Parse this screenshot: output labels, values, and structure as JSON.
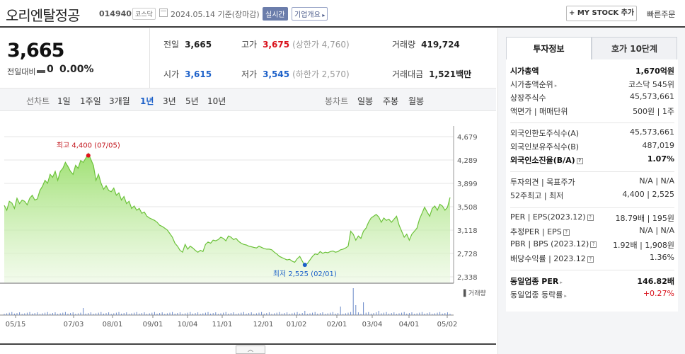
{
  "header": {
    "title": "오리엔탈정공",
    "code": "014940",
    "market": "코스닥",
    "date": "2024.05.14 기준(장마감)",
    "realtime": "실시간",
    "overview": "기업개요",
    "my_stock": "+ MY STOCK 추가",
    "quick_order": "빠른주문"
  },
  "quote": {
    "price": "3,665",
    "change_label": "전일대비",
    "change": "0",
    "change_pct": "0.00%",
    "prev_label": "전일",
    "prev": "3,665",
    "high_label": "고가",
    "high": "3,675",
    "upper_limit": "(상한가 4,760)",
    "volume_label": "거래량",
    "volume": "419,724",
    "open_label": "시가",
    "open": "3,615",
    "low_label": "저가",
    "low": "3,545",
    "lower_limit": "(하한가 2,570)",
    "value_label": "거래대금",
    "value": "1,521",
    "value_unit": "백만"
  },
  "period_bar": {
    "line_chart": "선차트",
    "periods": [
      "1일",
      "1주일",
      "3개월",
      "1년",
      "3년",
      "5년",
      "10년"
    ],
    "active_period": "1년",
    "candle_chart": "봉차트",
    "candles": [
      "일봉",
      "주봉",
      "월봉"
    ]
  },
  "chart_data": {
    "type": "area",
    "title": "",
    "x_ticks": [
      "05/15",
      "07/03",
      "08/01",
      "09/01",
      "10/04",
      "11/01",
      "12/01",
      "01/02",
      "02/01",
      "03/04",
      "04/01",
      "05/02"
    ],
    "y_ticks": [
      "4,679",
      "4,289",
      "3,899",
      "3,508",
      "3,118",
      "2,728",
      "2,338"
    ],
    "ylim": [
      2338,
      4679
    ],
    "series": [
      {
        "values": [
          3530,
          3450,
          3600,
          3570,
          3480,
          3650,
          3560,
          3620,
          3600,
          3540,
          3650,
          3700,
          3620,
          3640,
          3780,
          3850,
          3950,
          3900,
          4050,
          4000,
          4100,
          3950,
          4100,
          4150,
          4250,
          4180,
          4100,
          4050,
          4200,
          4150,
          4280,
          4250,
          4320,
          4400,
          4300,
          4200,
          3950,
          4050,
          3900,
          3800,
          3860,
          3780,
          3760,
          3820,
          3700,
          3740,
          3620,
          3680,
          3560,
          3600,
          3480,
          3520,
          3450,
          3480,
          3400,
          3420,
          3350,
          3320,
          3300,
          3280,
          3250,
          3200,
          3180,
          3150,
          3120,
          3060,
          3000,
          2900,
          2850,
          2780,
          2750,
          2880,
          2800,
          2850,
          2820,
          2780,
          2750,
          2780,
          2760,
          2880,
          2920,
          2900,
          2950,
          2940,
          2960,
          3000,
          2980,
          2940,
          3020,
          3000,
          2960,
          2980,
          2930,
          2900,
          2880,
          2870,
          2850,
          2840,
          2830,
          2820,
          2850,
          2830,
          2810,
          2800,
          2800,
          2790,
          2750,
          2720,
          2680,
          2660,
          2640,
          2620,
          2630,
          2600,
          2580,
          2640,
          2680,
          2600,
          2525,
          2560,
          2620,
          2680,
          2720,
          2710,
          2760,
          2730,
          2750,
          2740,
          2760,
          2770,
          2750,
          2760,
          2790,
          2800,
          2820,
          2850,
          3100,
          3050,
          2950,
          3020,
          2980,
          3100,
          3150,
          3250,
          3320,
          3350,
          3380,
          3340,
          3250,
          3320,
          3280,
          3300,
          3250,
          3300,
          3350,
          3200,
          3100,
          3000,
          3050,
          2950,
          3050,
          3100,
          3150,
          3300,
          3400,
          3500,
          3420,
          3350,
          3480,
          3520,
          3450,
          3550,
          3520,
          3450,
          3500,
          3665
        ],
        "annotations": [
          {
            "label": "최고 4,400 (07/05)",
            "value": 4400,
            "index": 33
          },
          {
            "label": "최저 2,525 (02/01)",
            "value": 2525,
            "index": 118
          }
        ]
      }
    ],
    "volume_label": "거래량"
  },
  "expand_label": "︿",
  "panel": {
    "tab_invest": "투자정보",
    "tab_orderbook": "호가 10단계",
    "rows": [
      {
        "k": "시가총액",
        "v": "1,670억원",
        "bold": true
      },
      {
        "k": "시가총액순위",
        "v": "코스닥 545위",
        "arrow": true
      },
      {
        "k": "상장주식수",
        "v": "45,573,661"
      },
      {
        "k": "액면가 | 매매단위",
        "v": "500원 | 1주"
      },
      {
        "k": "외국인한도주식수(A)",
        "v": "45,573,661"
      },
      {
        "k": "외국인보유주식수(B)",
        "v": "487,019"
      },
      {
        "k": "외국인소진율(B/A)",
        "v": "1.07%",
        "bold": true,
        "help": true
      },
      {
        "k": "투자의견 | 목표주가",
        "v": "N/A | N/A"
      },
      {
        "k": "52주최고 | 최저",
        "v": "4,400 | 2,525"
      },
      {
        "k": "PER | EPS(2023.12)",
        "v": "18.79배 | 195원",
        "help": true
      },
      {
        "k": "추정PER | EPS",
        "v": "N/A | N/A",
        "help": true
      },
      {
        "k": "PBR | BPS (2023.12)",
        "v": "1.92배 | 1,908원",
        "help": true
      },
      {
        "k": "배당수익률 | 2023.12",
        "v": "1.36%",
        "help": true
      },
      {
        "k": "동일업종 PER",
        "v": "146.82배",
        "bold": true,
        "arrow": true
      },
      {
        "k": "동일업종 등락률",
        "v": "+0.27%",
        "red": true,
        "arrow": true
      }
    ]
  }
}
